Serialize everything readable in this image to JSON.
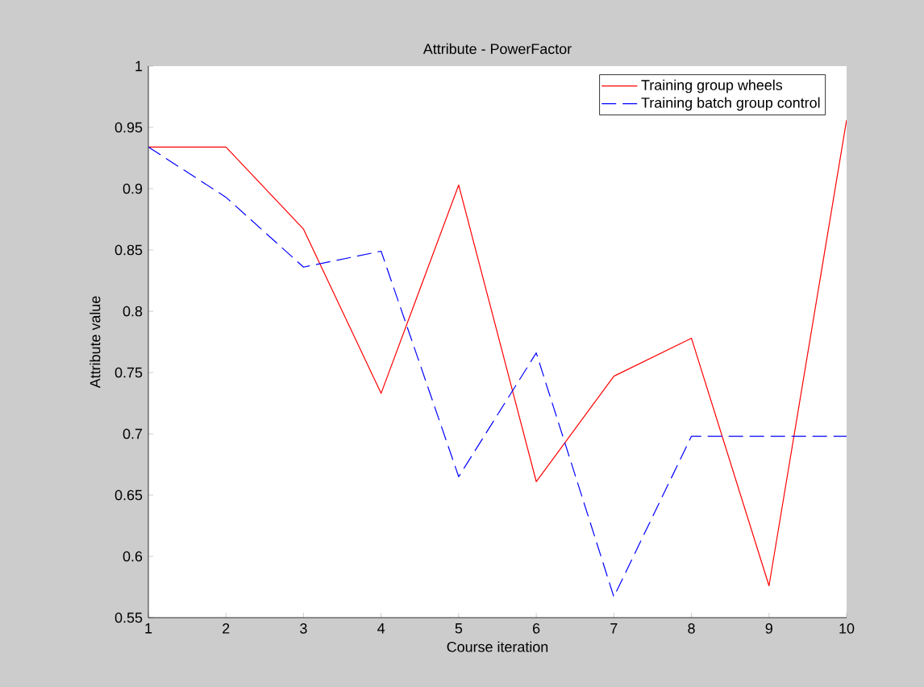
{
  "chart_data": {
    "type": "line",
    "title": "Attribute - PowerFactor",
    "xlabel": "Course iteration",
    "ylabel": "Attribute value",
    "x": [
      1,
      2,
      3,
      4,
      5,
      6,
      7,
      8,
      9,
      10
    ],
    "series": [
      {
        "name": "Training group wheels",
        "color": "#ff0000",
        "line_style": "solid",
        "values": [
          0.934,
          0.934,
          0.867,
          0.733,
          0.903,
          0.661,
          0.747,
          0.778,
          0.576,
          0.956
        ]
      },
      {
        "name": "Training batch group control",
        "color": "#0000ff",
        "line_style": "dashed",
        "values": [
          0.934,
          0.893,
          0.836,
          0.849,
          0.665,
          0.766,
          0.567,
          0.698,
          0.698,
          0.698
        ]
      }
    ],
    "xlim": [
      1,
      10
    ],
    "xticks": [
      1,
      2,
      3,
      4,
      5,
      6,
      7,
      8,
      9,
      10
    ],
    "ylim": [
      0.55,
      1
    ],
    "yticks": [
      0.55,
      0.6,
      0.65,
      0.7,
      0.75,
      0.8,
      0.85,
      0.9,
      0.95,
      1
    ],
    "grid": false,
    "legend": "top right",
    "marker": "none"
  }
}
